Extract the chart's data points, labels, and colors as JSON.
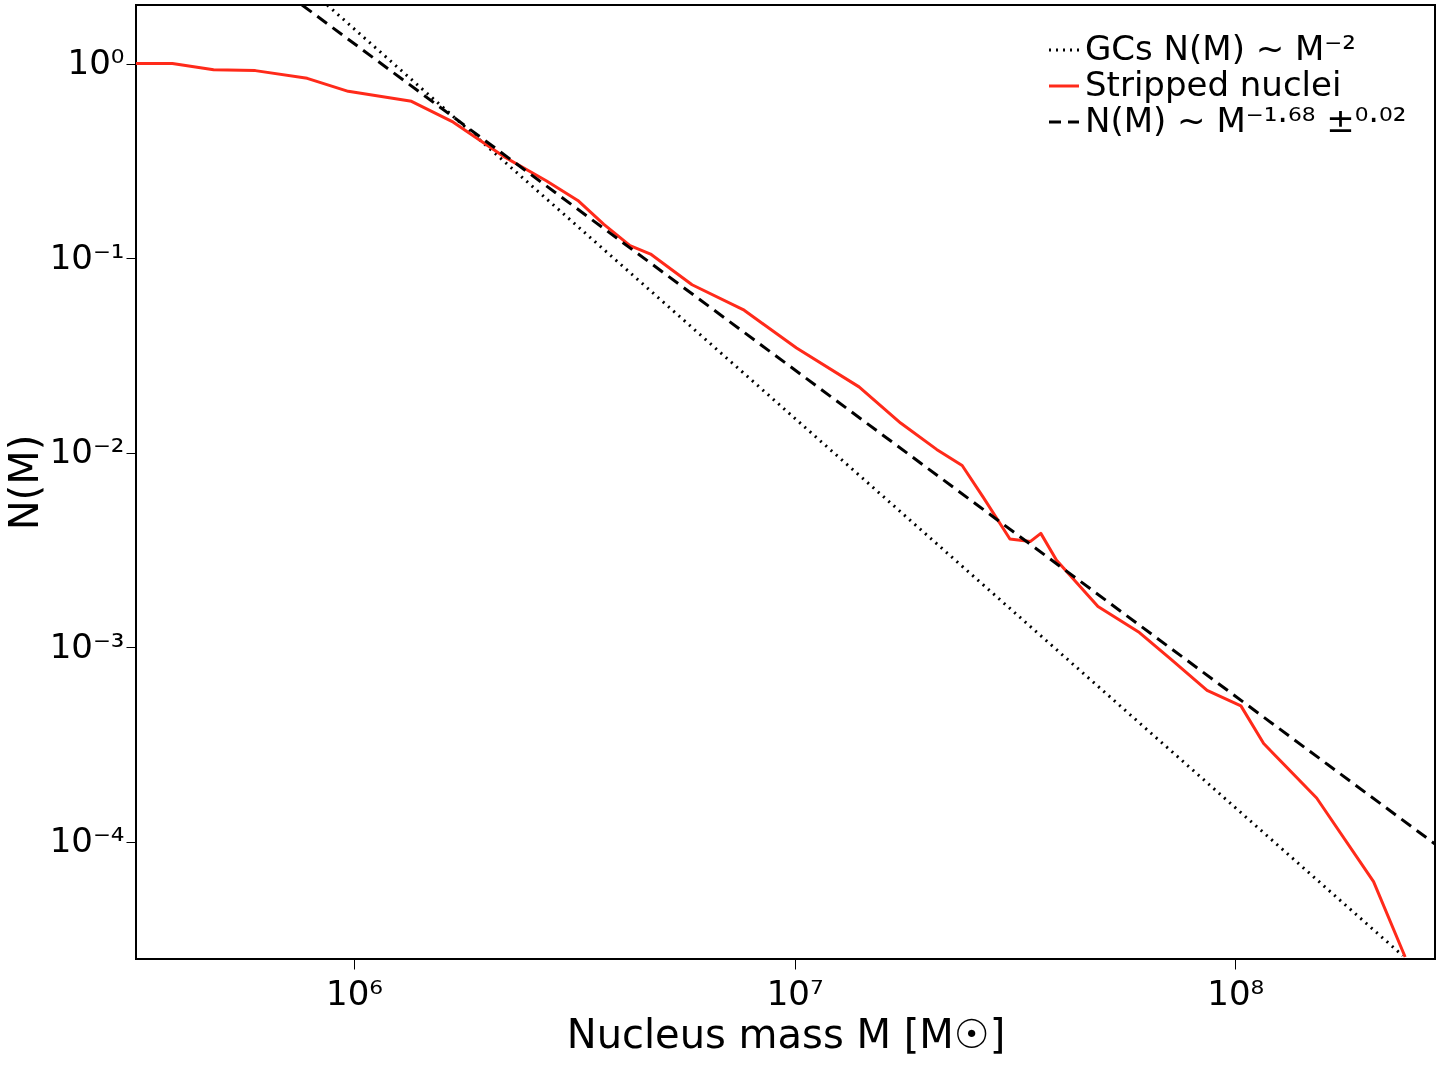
{
  "chart_data": {
    "type": "line",
    "xlabel": "Nucleus mass M [M☉]",
    "ylabel": "N(M)",
    "log": "xy",
    "grid": false,
    "legend": "top right",
    "xlim": [
      320000,
      284000000
    ],
    "ylim": [
      2.5e-05,
      2.0
    ],
    "xticks": [
      {
        "value": 1000000,
        "label": "10⁶"
      },
      {
        "value": 10000000,
        "label": "10⁷"
      },
      {
        "value": 100000000,
        "label": "10⁸"
      }
    ],
    "yticks": [
      {
        "value": 0.0001,
        "label": "10⁻⁴"
      },
      {
        "value": 0.001,
        "label": "10⁻³"
      },
      {
        "value": 0.01,
        "label": "10⁻²"
      },
      {
        "value": 0.1,
        "label": "10⁻¹"
      },
      {
        "value": 1,
        "label": "10⁰"
      }
    ],
    "series": [
      {
        "name": "GCs N(M) ~ M⁻²",
        "color": "#000000",
        "line_style": "dotted",
        "x": [
          869000,
          240000000
        ],
        "values": [
          2.0,
          2.6e-05
        ]
      },
      {
        "name": "Stripped nuclei",
        "color": "#ff2a1a",
        "line_style": "solid",
        "x": [
          320000,
          387000,
          480000,
          597000,
          783000,
          970000,
          1350000,
          1680000,
          2200000,
          2730000,
          3220000,
          3690000,
          4230000,
          4710000,
          5850000,
          7680000,
          10100000,
          14000000,
          17400000,
          21000000,
          24000000,
          26800000,
          30800000,
          34300000,
          36200000,
          39300000,
          48800000,
          60600000,
          71400000,
          86300000,
          103000000,
          116000000,
          153000000,
          206000000,
          243000000
        ],
        "values": [
          1.0,
          1.0,
          0.93,
          0.92,
          0.84,
          0.72,
          0.64,
          0.5,
          0.33,
          0.25,
          0.198,
          0.149,
          0.116,
          0.105,
          0.073,
          0.054,
          0.0345,
          0.0218,
          0.0142,
          0.0104,
          0.0086,
          0.0059,
          0.0036,
          0.0035,
          0.00385,
          0.0028,
          0.00162,
          0.00119,
          0.00087,
          0.0006,
          0.0005,
          0.00032,
          0.000168,
          6.25e-05,
          2.56e-05
        ]
      },
      {
        "name": "N(M) ~ M⁻¹·⁶⁸ ±⁰·⁰²",
        "color": "#000000",
        "line_style": "dashed",
        "x": [
          762000,
          284000000
        ],
        "values": [
          2.0,
          9.75e-05
        ]
      }
    ]
  }
}
